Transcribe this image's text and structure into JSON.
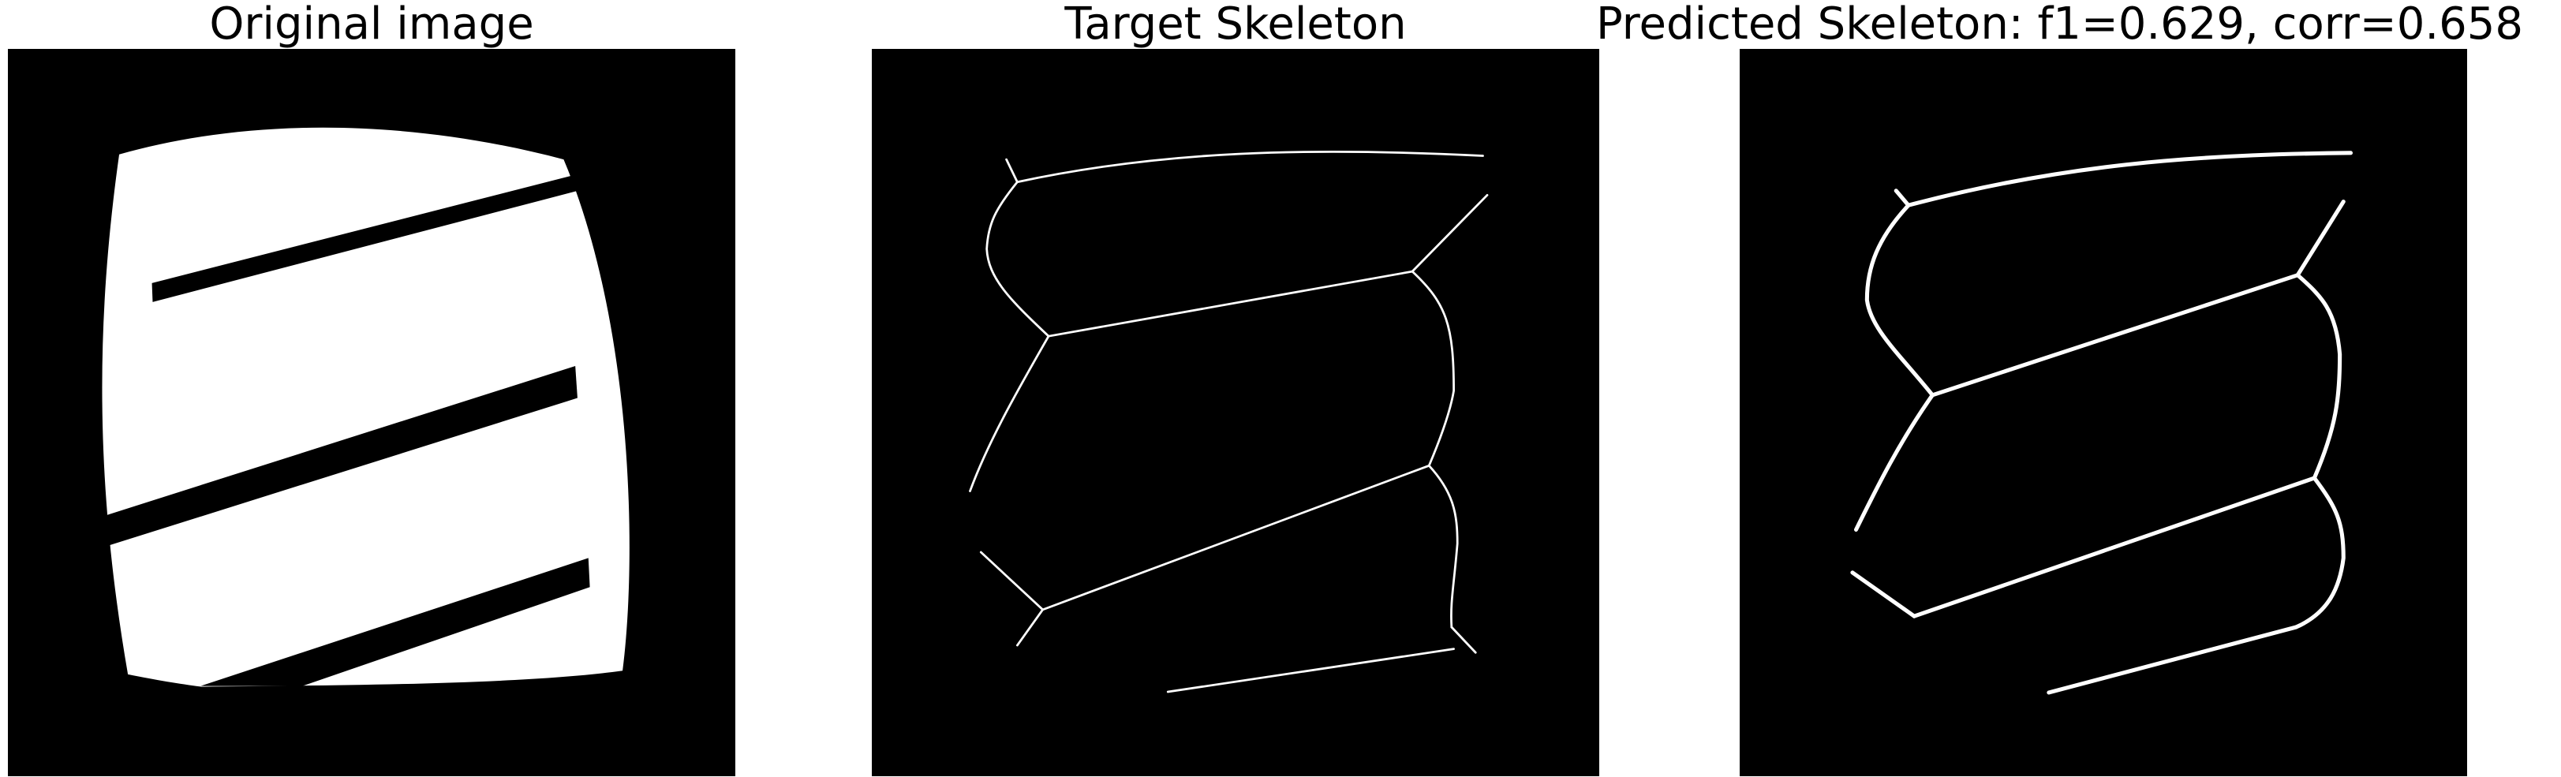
{
  "panels": [
    {
      "id": "original",
      "title": "Original image"
    },
    {
      "id": "target",
      "title": "Target Skeleton"
    },
    {
      "id": "predicted",
      "title": "Predicted Skeleton: f1=0.629, corr=0.658"
    }
  ],
  "colors": {
    "background": "#000000",
    "foreground": "#ffffff",
    "page": "#ffffff"
  }
}
